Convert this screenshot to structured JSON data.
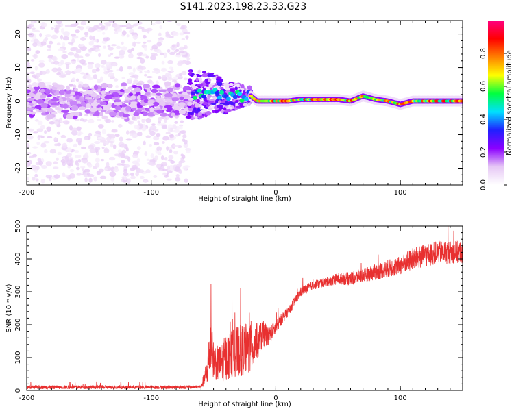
{
  "figure": {
    "title": "S141.2023.198.23.33.G23"
  },
  "chart_data": [
    {
      "type": "heatmap",
      "xlabel": "Height of straight line (km)",
      "ylabel": "Frequency (Hz)",
      "xlim": [
        -200,
        150
      ],
      "ylim": [
        -25,
        24
      ],
      "x_ticks": [
        -200,
        -100,
        0,
        100
      ],
      "x_tick_labels": [
        "-200",
        "-100",
        "0",
        "100"
      ],
      "y_ticks": [
        -20,
        -10,
        0,
        10,
        20
      ],
      "y_tick_labels": [
        "-20",
        "-10",
        "0",
        "10",
        "20"
      ],
      "colorbar": {
        "label": "Normalized spectral amplitude",
        "range": [
          0,
          1
        ],
        "ticks": [
          0.0,
          0.2,
          0.4,
          0.6,
          0.8
        ],
        "tick_labels": [
          "0.0",
          "0.2",
          "0.4",
          "0.6",
          "0.8"
        ],
        "colormap": [
          "#ffffff",
          "#e6c8f5",
          "#8c00ff",
          "#2020ff",
          "#00e0ff",
          "#00ff40",
          "#ffff00",
          "#ff8000",
          "#ff0000",
          "#ff0080"
        ]
      },
      "regions": [
        {
          "x_range": [
            -200,
            -70
          ],
          "description_level": "noise",
          "freq_spread": 24,
          "amplitude": 0.15
        },
        {
          "x_range": [
            -70,
            -20
          ],
          "description_level": "transition",
          "freq_spread": 8,
          "amplitude": 0.45
        },
        {
          "x_range": [
            -20,
            150
          ],
          "description_level": "signal",
          "freq_spread": 2,
          "amplitude": 0.85
        }
      ],
      "signal_centerline": [
        [
          -60,
          2
        ],
        [
          -50,
          2.5
        ],
        [
          -40,
          1
        ],
        [
          -30,
          1.5
        ],
        [
          -20,
          1.5
        ],
        [
          -15,
          0
        ],
        [
          -10,
          0
        ],
        [
          0,
          0
        ],
        [
          10,
          0
        ],
        [
          20,
          0.5
        ],
        [
          30,
          0.5
        ],
        [
          40,
          0.5
        ],
        [
          50,
          0.5
        ],
        [
          60,
          0
        ],
        [
          70,
          1.5
        ],
        [
          80,
          0.5
        ],
        [
          90,
          0
        ],
        [
          100,
          -1
        ],
        [
          110,
          0
        ],
        [
          120,
          0
        ],
        [
          130,
          0
        ],
        [
          140,
          0
        ],
        [
          150,
          0
        ]
      ]
    },
    {
      "type": "line",
      "xlabel": "Height of straight line (km)",
      "ylabel": "SNR (10 * v/v)",
      "xlim": [
        -200,
        150
      ],
      "ylim": [
        0,
        500
      ],
      "x_ticks": [
        -200,
        -100,
        0,
        100
      ],
      "x_tick_labels": [
        "-200",
        "-100",
        "0",
        "100"
      ],
      "y_ticks": [
        0,
        100,
        200,
        300,
        400,
        500
      ],
      "y_tick_labels": [
        "0",
        "100",
        "200",
        "300",
        "400",
        "500"
      ],
      "series": [
        {
          "color": "#e83030",
          "x": [
            -200,
            -150,
            -100,
            -70,
            -60,
            -55,
            -52,
            -50,
            -45,
            -40,
            -30,
            -20,
            -15,
            -10,
            -5,
            0,
            5,
            10,
            20,
            30,
            40,
            50,
            60,
            70,
            80,
            90,
            100,
            110,
            120,
            130,
            140,
            150
          ],
          "y": [
            10,
            10,
            10,
            10,
            12,
            60,
            150,
            90,
            80,
            100,
            120,
            130,
            150,
            170,
            170,
            190,
            220,
            240,
            300,
            320,
            330,
            340,
            340,
            350,
            360,
            370,
            380,
            400,
            410,
            420,
            420,
            420
          ],
          "noise_amplitude": [
            8,
            8,
            8,
            8,
            8,
            60,
            150,
            80,
            80,
            100,
            110,
            120,
            80,
            60,
            40,
            30,
            25,
            20,
            20,
            20,
            20,
            25,
            30,
            30,
            35,
            40,
            40,
            50,
            50,
            50,
            50,
            50
          ]
        }
      ]
    }
  ]
}
